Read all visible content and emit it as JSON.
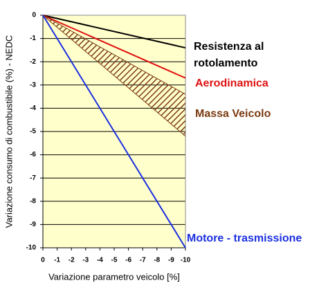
{
  "chart_data": {
    "type": "line",
    "y_label": "Variazione consumo di combustibile (%) - NEDC",
    "x_label": "Variazione parametro veicolo [%]",
    "xlim": [
      0,
      -10
    ],
    "xticks": [
      0,
      -1,
      -2,
      -3,
      -4,
      -5,
      -6,
      -7,
      -8,
      -9,
      -10
    ],
    "ylim": [
      -10,
      0
    ],
    "yticks": [
      0,
      -1,
      -2,
      -3,
      -4,
      -5,
      -6,
      -7,
      -8,
      -9,
      -10
    ],
    "grid": true,
    "background": "#ffffcc",
    "series": [
      {
        "name": "Resistenza al rotolamento",
        "color": "#000000",
        "x": [
          0,
          -10
        ],
        "values": [
          0,
          -1.4
        ]
      },
      {
        "name": "Aerodinamica",
        "color": "#e01010",
        "x": [
          0,
          -10
        ],
        "values": [
          0,
          -2.7
        ]
      },
      {
        "name": "Massa Veicolo",
        "color": "#7a3a10",
        "kind": "band",
        "x": [
          0,
          -10
        ],
        "values": [
          0,
          -3.4
        ],
        "lower": [
          0,
          -5.2
        ]
      },
      {
        "name": "Motore - trasmissione",
        "color": "#1a2ee0",
        "x": [
          0,
          -10
        ],
        "values": [
          0,
          -10
        ]
      }
    ]
  }
}
